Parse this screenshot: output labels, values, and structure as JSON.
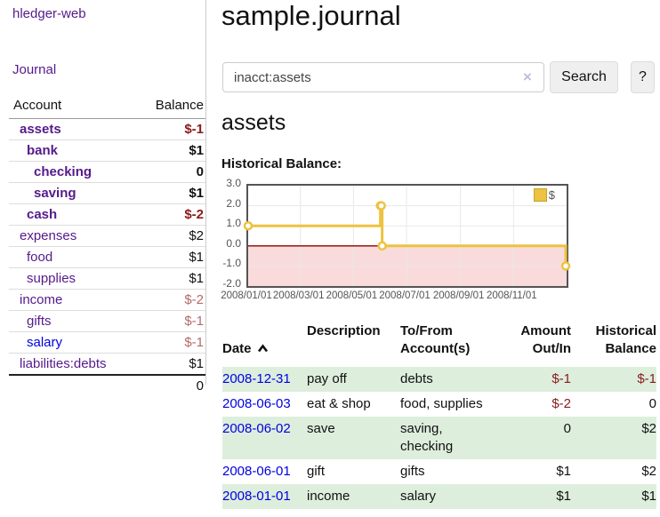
{
  "app": {
    "brand": "hledger-web",
    "nav_journal": "Journal"
  },
  "sidebar": {
    "account_header": "Account",
    "balance_header": "Balance",
    "accounts": [
      {
        "name": "assets",
        "balance": "$-1"
      },
      {
        "name": "bank",
        "balance": "$1"
      },
      {
        "name": "checking",
        "balance": "0"
      },
      {
        "name": "saving",
        "balance": "$1"
      },
      {
        "name": "cash",
        "balance": "$-2"
      },
      {
        "name": "expenses",
        "balance": "$2"
      },
      {
        "name": "food",
        "balance": "$1"
      },
      {
        "name": "supplies",
        "balance": "$1"
      },
      {
        "name": "income",
        "balance": "$-2"
      },
      {
        "name": "gifts",
        "balance": "$-1"
      },
      {
        "name": "salary",
        "balance": "$-1"
      },
      {
        "name": "liabilities:debts",
        "balance": "$1"
      }
    ],
    "total": "0"
  },
  "main": {
    "title": "sample.journal",
    "search": {
      "value": "inacct:assets",
      "clear": "×",
      "search_button": "Search",
      "help_button": "?"
    },
    "heading": "assets",
    "chart_label": "Historical Balance:",
    "table": {
      "headers": {
        "date": "Date",
        "description": "Description",
        "tofrom": "To/From\nAccount(s)",
        "amount": "Amount\nOut/In",
        "balance": "Historical\nBalance"
      },
      "rows": [
        {
          "date": "2008-12-31",
          "description": "pay off",
          "accounts": "debts",
          "amount": "$-1",
          "balance": "$-1"
        },
        {
          "date": "2008-06-03",
          "description": "eat & shop",
          "accounts": "food, supplies",
          "amount": "$-2",
          "balance": "0"
        },
        {
          "date": "2008-06-02",
          "description": "save",
          "accounts": "saving,\nchecking",
          "amount": "0",
          "balance": "$2"
        },
        {
          "date": "2008-06-01",
          "description": "gift",
          "accounts": "gifts",
          "amount": "$1",
          "balance": "$2"
        },
        {
          "date": "2008-01-01",
          "description": "income",
          "accounts": "salary",
          "amount": "$1",
          "balance": "$1"
        }
      ]
    }
  },
  "chart_data": {
    "type": "line",
    "steps": true,
    "title": "Historical Balance",
    "legend_position": "top-right",
    "series": [
      {
        "name": "$",
        "points": [
          [
            "2008/01/01",
            1
          ],
          [
            "2008/06/01",
            2
          ],
          [
            "2008/06/02",
            2
          ],
          [
            "2008/06/03",
            0
          ],
          [
            "2008/12/31",
            -1
          ]
        ]
      }
    ],
    "x_range": [
      "2008/01/01",
      "2009/01/01"
    ],
    "ylim": [
      -2,
      3
    ],
    "yticks": [
      "3.0",
      "2.0",
      "1.0",
      "0.0",
      "-1.0",
      "-2.0"
    ],
    "xticks": [
      "2008/01/01",
      "2008/03/01",
      "2008/05/01",
      "2008/07/01",
      "2008/09/01",
      "2008/11/01"
    ],
    "colors": {
      "series": "#edc240",
      "negative_fill": "#fadbdb",
      "zero_line": "#8b0000",
      "grid": "#e8e8e8",
      "border": "#545454"
    }
  }
}
